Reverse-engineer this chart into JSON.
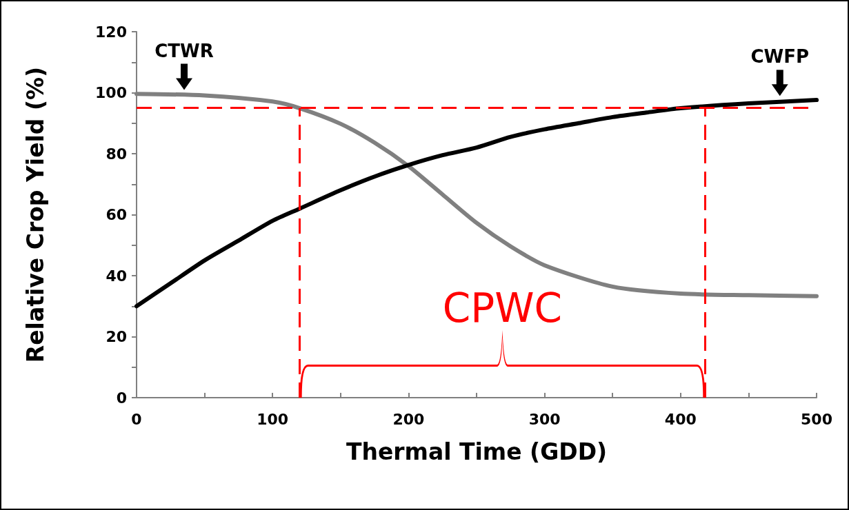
{
  "chart_data": {
    "type": "line",
    "xlabel": "Thermal Time (GDD)",
    "ylabel": "Relative Crop Yield (%)",
    "xlim": [
      0,
      500
    ],
    "ylim": [
      0,
      120
    ],
    "xticks": [
      0,
      {
        "value": 50,
        "label": null
      },
      100,
      {
        "value": 150,
        "label": null
      },
      200,
      {
        "value": 250,
        "label": null
      },
      300,
      {
        "value": 350,
        "label": null
      },
      400,
      {
        "value": 450,
        "label": null
      },
      500
    ],
    "yticks": [
      0,
      {
        "value": 10,
        "label": null
      },
      20,
      {
        "value": 30,
        "label": null
      },
      40,
      {
        "value": 50,
        "label": null
      },
      60,
      {
        "value": 70,
        "label": null
      },
      80,
      {
        "value": 90,
        "label": null
      },
      100,
      {
        "value": 110,
        "label": null
      },
      120
    ],
    "grid": false,
    "marker": "none",
    "line_style": "solid",
    "series": [
      {
        "color": "#808080",
        "x": [
          0,
          50,
          100,
          120,
          150,
          175,
          200,
          225,
          250,
          275,
          300,
          350,
          400,
          450,
          500
        ],
        "values": [
          99.6,
          99.1,
          97.1,
          94.9,
          89.8,
          83.6,
          75.9,
          66.6,
          57.3,
          49.6,
          43.4,
          36.4,
          34.1,
          33.6,
          33.3
        ]
      },
      {
        "color": "#000000",
        "x": [
          0,
          25,
          50,
          75,
          100,
          120,
          150,
          175,
          200,
          225,
          250,
          275,
          300,
          325,
          350,
          375,
          400,
          450,
          500
        ],
        "values": [
          30,
          37.5,
          45,
          51.5,
          58,
          62,
          68,
          72.5,
          76.3,
          79.5,
          82,
          85.5,
          88,
          90,
          92,
          93.5,
          94.9,
          96.5,
          97.6
        ]
      }
    ],
    "ref_lines": [
      {
        "axis": "y",
        "value": 95,
        "color": "#ff0000",
        "line_style": "dashed"
      },
      {
        "axis": "x",
        "value": 120,
        "color": "#ff0000",
        "line_style": "dashed"
      },
      {
        "axis": "x",
        "value": 418,
        "color": "#ff0000",
        "line_style": "dashed"
      }
    ],
    "annotations": [
      {
        "text": "CTWR",
        "x": 35,
        "y": 100
      },
      {
        "text": "CWFP",
        "x": 473,
        "y": 98
      },
      "CPWC"
    ]
  }
}
